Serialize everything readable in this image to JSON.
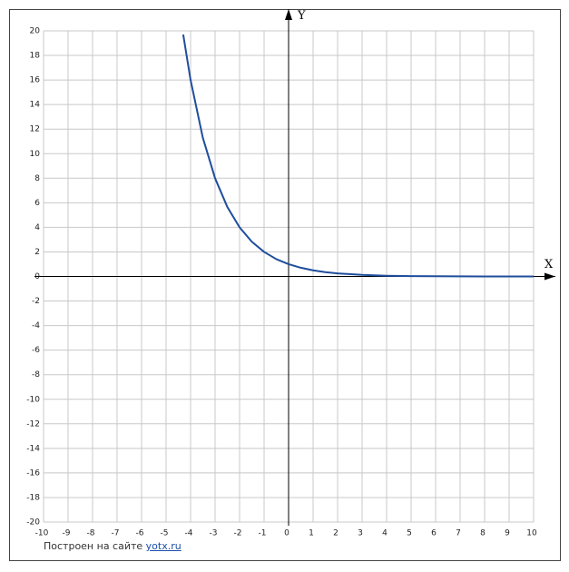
{
  "chart_data": {
    "type": "line",
    "x": [
      -4.3,
      -4,
      -3.5,
      -3,
      -2.5,
      -2,
      -1.5,
      -1,
      -0.5,
      0,
      0.5,
      1,
      1.5,
      2,
      3,
      4,
      5,
      6,
      7,
      8,
      9,
      10
    ],
    "values": [
      19.7,
      16,
      11.3,
      8,
      5.66,
      4,
      2.83,
      2,
      1.41,
      1,
      0.71,
      0.5,
      0.35,
      0.25,
      0.13,
      0.06,
      0.03,
      0.02,
      0.01,
      0,
      0,
      0
    ],
    "color": "#1f4e9c",
    "xlim": [
      -10,
      10
    ],
    "ylim": [
      -20,
      20
    ],
    "xticks": [
      -10,
      -9,
      -8,
      -7,
      -6,
      -5,
      -4,
      -3,
      -2,
      -1,
      0,
      1,
      2,
      3,
      4,
      5,
      6,
      7,
      8,
      9,
      10
    ],
    "yticks": [
      -20,
      -18,
      -16,
      -14,
      -12,
      -10,
      -8,
      -6,
      -4,
      -2,
      0,
      2,
      4,
      6,
      8,
      10,
      12,
      14,
      16,
      18,
      20
    ],
    "x_axis_label": "X",
    "y_axis_label": "Y",
    "grid": true
  },
  "credit": {
    "text": "Построен на сайте",
    "link": "yotx.ru"
  }
}
